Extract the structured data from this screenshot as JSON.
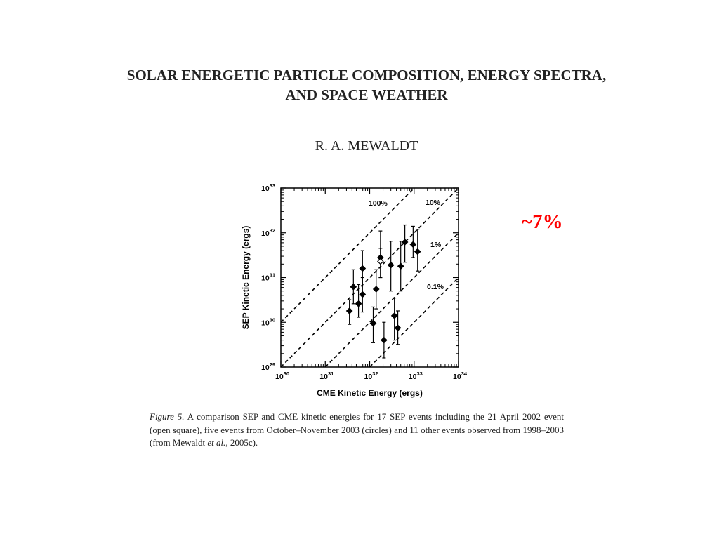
{
  "paper": {
    "title_line1": "SOLAR ENERGETIC PARTICLE COMPOSITION, ENERGY SPECTRA,",
    "title_line2": "AND SPACE WEATHER",
    "author": "R. A. MEWALDT"
  },
  "annotation": {
    "text": "~7%",
    "color": "#ff0000"
  },
  "chart_data": {
    "type": "scatter",
    "xlabel": "CME Kinetic Energy (ergs)",
    "ylabel": "SEP Kinetic Energy (ergs)",
    "x_scale": "log",
    "y_scale": "log",
    "xlim": [
      1e+30,
      1e+34
    ],
    "ylim": [
      1e+29,
      1e+33
    ],
    "x_ticks": [
      {
        "value": 1e+30,
        "base": "10",
        "exp": "30"
      },
      {
        "value": 1e+31,
        "base": "10",
        "exp": "31"
      },
      {
        "value": 1e+32,
        "base": "10",
        "exp": "32"
      },
      {
        "value": 1e+33,
        "base": "10",
        "exp": "33"
      },
      {
        "value": 1e+34,
        "base": "10",
        "exp": "34"
      }
    ],
    "y_ticks": [
      {
        "value": 1e+29,
        "base": "10",
        "exp": "29"
      },
      {
        "value": 1e+30,
        "base": "10",
        "exp": "30"
      },
      {
        "value": 1e+31,
        "base": "10",
        "exp": "31"
      },
      {
        "value": 1e+32,
        "base": "10",
        "exp": "32"
      },
      {
        "value": 1e+33,
        "base": "10",
        "exp": "33"
      }
    ],
    "reference_lines": [
      {
        "label": "100%",
        "ratio": 1
      },
      {
        "label": "10%",
        "ratio": 0.1
      },
      {
        "label": "1%",
        "ratio": 0.01
      },
      {
        "label": "0.1%",
        "ratio": 0.001
      }
    ],
    "points": [
      {
        "x": 3.5e+31,
        "y": 1.8e+30,
        "ylo": 9e+29,
        "yhi": 3.2e+30,
        "open": false
      },
      {
        "x": 4.3e+31,
        "y": 6.2e+30,
        "ylo": 2.6e+30,
        "yhi": 1.5e+31,
        "open": false
      },
      {
        "x": 5.6e+31,
        "y": 2.6e+30,
        "ylo": 1.3e+30,
        "yhi": 7e+30,
        "open": false
      },
      {
        "x": 6.9e+31,
        "y": 1.6e+31,
        "ylo": 6.5e+30,
        "yhi": 4e+31,
        "open": false
      },
      {
        "x": 6.9e+31,
        "y": 4.2e+30,
        "ylo": 1.7e+30,
        "yhi": 1e+31,
        "open": false
      },
      {
        "x": 1.2e+32,
        "y": 9.5e+29,
        "ylo": 3.5e+29,
        "yhi": 2.2e+30,
        "open": false
      },
      {
        "x": 1.4e+32,
        "y": 5.5e+30,
        "ylo": 2e+30,
        "yhi": 1.5e+31,
        "open": false
      },
      {
        "x": 1.75e+32,
        "y": 2.8e+31,
        "ylo": 1e+31,
        "yhi": 1.1e+32,
        "open": false
      },
      {
        "x": 1.75e+32,
        "y": 2.3e+31,
        "ylo": 1e+31,
        "yhi": 4.5e+31,
        "open": true
      },
      {
        "x": 2.1e+32,
        "y": 4e+29,
        "ylo": 1.6e+29,
        "yhi": 1e+30,
        "open": false
      },
      {
        "x": 3e+32,
        "y": 1.9e+31,
        "ylo": 5e+30,
        "yhi": 6.5e+31,
        "open": false
      },
      {
        "x": 3.6e+32,
        "y": 1.4e+30,
        "ylo": 4e+29,
        "yhi": 3.5e+30,
        "open": false
      },
      {
        "x": 4.3e+32,
        "y": 7.5e+29,
        "ylo": 3.2e+29,
        "yhi": 1.8e+30,
        "open": false
      },
      {
        "x": 5e+32,
        "y": 1.8e+31,
        "ylo": 5e+30,
        "yhi": 6.5e+31,
        "open": false
      },
      {
        "x": 6.2e+32,
        "y": 6.2e+31,
        "ylo": 2.2e+31,
        "yhi": 1.5e+32,
        "open": false
      },
      {
        "x": 9.5e+32,
        "y": 5.5e+31,
        "ylo": 2.8e+31,
        "yhi": 1.4e+32,
        "open": false
      },
      {
        "x": 1.2e+33,
        "y": 3.8e+31,
        "ylo": 1.4e+31,
        "yhi": 1.2e+32,
        "open": false
      }
    ]
  },
  "caption": {
    "figure_label": "Figure 5.",
    "text_part1": " A comparison SEP and CME kinetic energies for 17 SEP events including the 21 April 2002 event (open square), five events from October–November 2003 (circles) and 11 other events observed from 1998–2003 (from Mewaldt ",
    "et_al": "et al.",
    "text_part2": ", 2005c)."
  }
}
